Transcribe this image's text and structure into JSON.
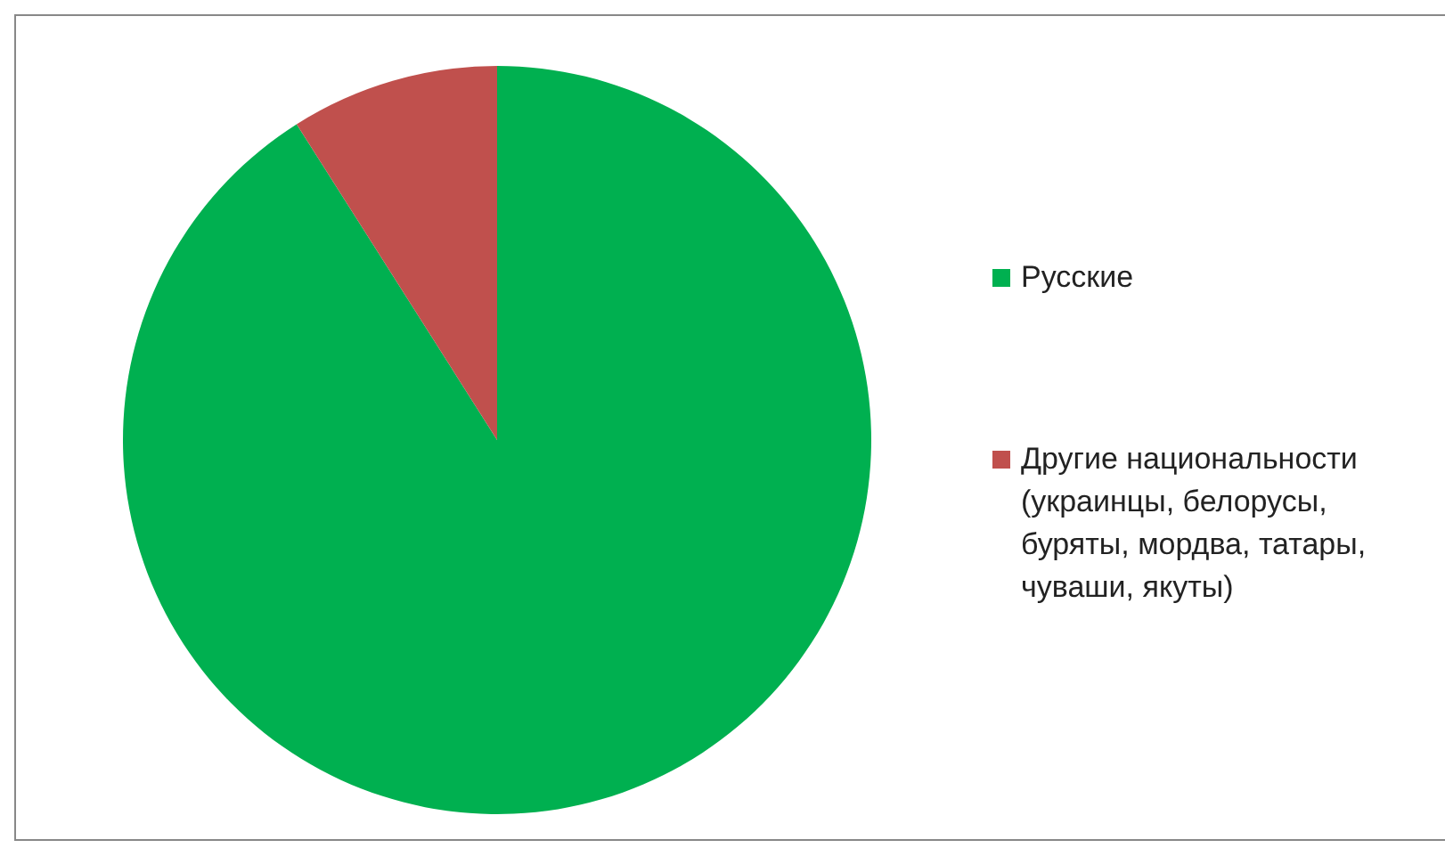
{
  "chart_data": {
    "type": "pie",
    "categories": [
      "Русские",
      "Другие национальности (украинцы, белорусы, буряты, мордва, татары, чуваши, якуты)"
    ],
    "values": [
      91,
      9
    ],
    "colors": [
      "#00b050",
      "#c0504d"
    ],
    "legend": "right"
  }
}
